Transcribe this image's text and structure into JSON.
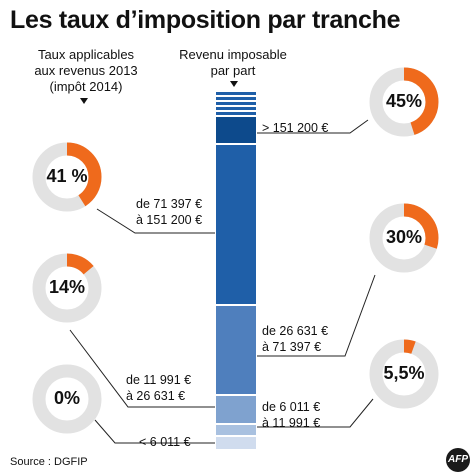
{
  "title": "Les taux d’imposition par tranche",
  "header_left": [
    "Taux applicables",
    "aux revenus 2013",
    "(impôt 2014)"
  ],
  "header_right": [
    "Revenu imposable",
    "par part"
  ],
  "source": "Source : DGFIP",
  "logo": "AFP",
  "colors": {
    "accent": "#ef6a1c",
    "ring_bg": "#e2e2e2",
    "bar_dark": "#0d4a8c",
    "bar_mid": "#1f5fa8",
    "bar_light": "#7fa2cf"
  },
  "brackets": [
    {
      "range": [
        "< 6 011 €"
      ],
      "rate_label": "0%",
      "rate": 0
    },
    {
      "range": [
        "de 6 011 €",
        "à 11 991 €"
      ],
      "rate_label": "5,5%",
      "rate": 5.5
    },
    {
      "range": [
        "de 11 991 €",
        "à 26 631 €"
      ],
      "rate_label": "14%",
      "rate": 14
    },
    {
      "range": [
        "de 26 631 €",
        "à 71 397 €"
      ],
      "rate_label": "30%",
      "rate": 30
    },
    {
      "range": [
        "de 71 397 €",
        "à 151 200 €"
      ],
      "rate_label": "41 %",
      "rate": 41
    },
    {
      "range": [
        "> 151 200 €"
      ],
      "rate_label": "45%",
      "rate": 45
    }
  ]
}
